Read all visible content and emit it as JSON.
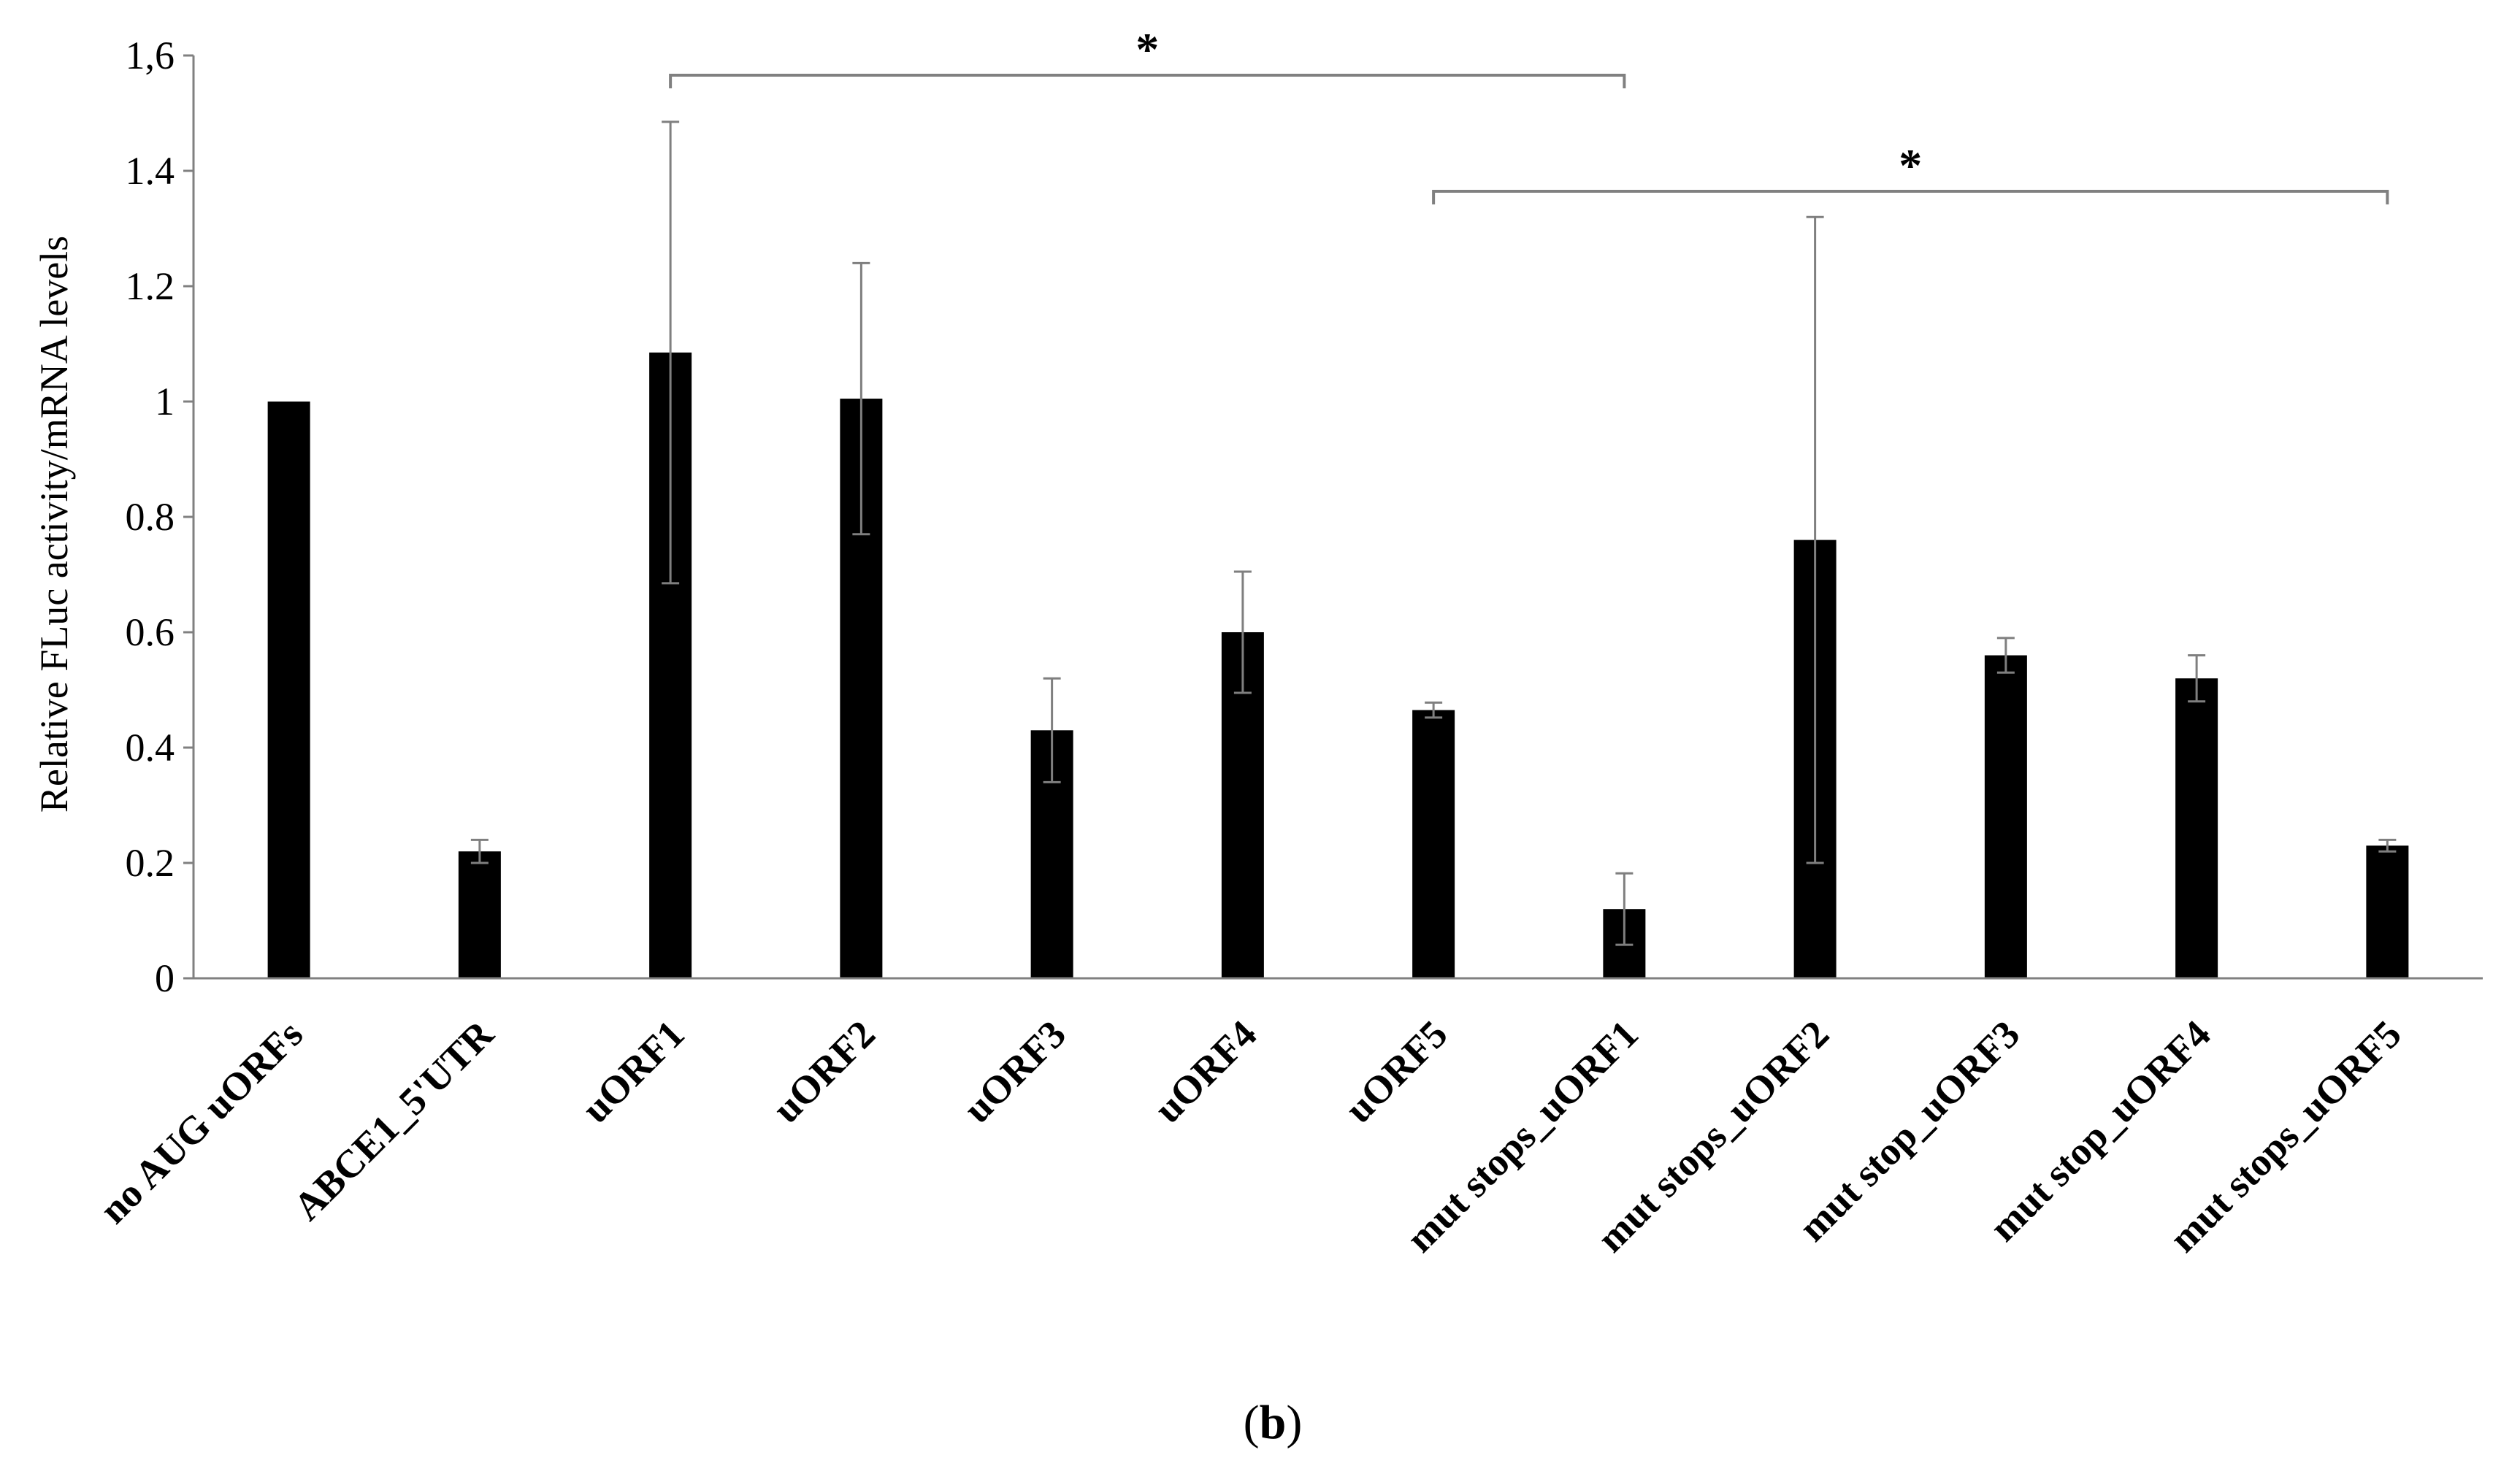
{
  "chart_data": {
    "type": "bar",
    "ylabel": "Relative FLuc activity/mRNA levels",
    "xlabel": "",
    "ylim": [
      0,
      1.6
    ],
    "yticks": [
      {
        "value": 0,
        "label": "0"
      },
      {
        "value": 0.2,
        "label": "0.2"
      },
      {
        "value": 0.4,
        "label": "0.4"
      },
      {
        "value": 0.6,
        "label": "0.6"
      },
      {
        "value": 0.8,
        "label": "0.8"
      },
      {
        "value": 1.0,
        "label": "1"
      },
      {
        "value": 1.2,
        "label": "1.2"
      },
      {
        "value": 1.4,
        "label": "1.4"
      },
      {
        "value": 1.6,
        "label": "1,6"
      }
    ],
    "grid": false,
    "bar_color": "#000000",
    "error_bar_color": "#7f7f7f",
    "categories": [
      "no AUG uORFs",
      "ABCE1_5'UTR",
      "uORF1",
      "uORF2",
      "uORF3",
      "uORF4",
      "uORF5",
      "mut stops_uORF1",
      "mut stops_uORF2",
      "mut stop_uORF3",
      "mut stop_uORF4",
      "mut stops_uORF5"
    ],
    "values": [
      1.0,
      0.22,
      1.085,
      1.005,
      0.43,
      0.6,
      0.465,
      0.12,
      0.76,
      0.56,
      0.52,
      0.23
    ],
    "errors": [
      0.0,
      0.02,
      0.4,
      0.235,
      0.09,
      0.105,
      0.013,
      0.062,
      0.56,
      0.03,
      0.04,
      0.01
    ],
    "significance": [
      {
        "from": 2,
        "to": 7,
        "label": "*"
      },
      {
        "from": 6,
        "to": 11,
        "label": "*"
      }
    ]
  },
  "panel_label": {
    "open": "(",
    "letter": "b",
    "close": ")"
  }
}
